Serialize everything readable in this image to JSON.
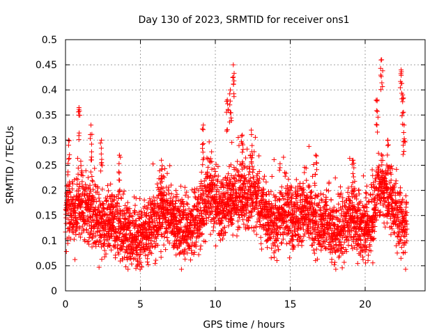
{
  "chart_data": {
    "type": "scatter",
    "title": "Day 130 of 2023, SRMTID for receiver ons1",
    "xlabel": "GPS time / hours",
    "ylabel": "SRMTID / TECUs",
    "xlim": [
      0,
      24
    ],
    "ylim": [
      0,
      0.5
    ],
    "x_ticks": [
      "0",
      "5",
      "10",
      "15",
      "20"
    ],
    "y_ticks": [
      "0",
      "0.05",
      "0.1",
      "0.15",
      "0.2",
      "0.25",
      "0.3",
      "0.35",
      "0.4",
      "0.45",
      "0.5"
    ],
    "grid": true,
    "marker": "+",
    "color": "#ff0000",
    "sampling_interval_hours": 0.01,
    "series_hours": [
      0,
      22.8
    ],
    "baseline_profile": [
      [
        0.0,
        0.15
      ],
      [
        0.5,
        0.16
      ],
      [
        1.0,
        0.17
      ],
      [
        1.5,
        0.16
      ],
      [
        2.0,
        0.15
      ],
      [
        2.5,
        0.13
      ],
      [
        3.0,
        0.14
      ],
      [
        3.5,
        0.13
      ],
      [
        4.0,
        0.12
      ],
      [
        4.5,
        0.11
      ],
      [
        5.0,
        0.11
      ],
      [
        5.5,
        0.12
      ],
      [
        6.0,
        0.14
      ],
      [
        6.5,
        0.16
      ],
      [
        7.0,
        0.15
      ],
      [
        7.5,
        0.13
      ],
      [
        8.0,
        0.12
      ],
      [
        8.5,
        0.13
      ],
      [
        9.0,
        0.15
      ],
      [
        9.5,
        0.19
      ],
      [
        10.0,
        0.18
      ],
      [
        10.5,
        0.16
      ],
      [
        11.0,
        0.17
      ],
      [
        11.5,
        0.19
      ],
      [
        12.0,
        0.18
      ],
      [
        12.5,
        0.2
      ],
      [
        13.0,
        0.17
      ],
      [
        13.5,
        0.14
      ],
      [
        14.0,
        0.13
      ],
      [
        14.5,
        0.16
      ],
      [
        15.0,
        0.15
      ],
      [
        15.5,
        0.15
      ],
      [
        16.0,
        0.16
      ],
      [
        16.5,
        0.14
      ],
      [
        17.0,
        0.13
      ],
      [
        17.5,
        0.13
      ],
      [
        18.0,
        0.11
      ],
      [
        18.5,
        0.12
      ],
      [
        19.0,
        0.15
      ],
      [
        19.5,
        0.14
      ],
      [
        20.0,
        0.12
      ],
      [
        20.5,
        0.14
      ],
      [
        21.0,
        0.21
      ],
      [
        21.5,
        0.19
      ],
      [
        22.0,
        0.17
      ],
      [
        22.5,
        0.13
      ],
      [
        22.8,
        0.12
      ]
    ],
    "peaks": [
      {
        "x": 0.9,
        "y": 0.365
      },
      {
        "x": 0.2,
        "y": 0.3
      },
      {
        "x": 2.4,
        "y": 0.3
      },
      {
        "x": 1.7,
        "y": 0.33
      },
      {
        "x": 3.6,
        "y": 0.27
      },
      {
        "x": 6.4,
        "y": 0.26
      },
      {
        "x": 9.2,
        "y": 0.33
      },
      {
        "x": 11.2,
        "y": 0.45
      },
      {
        "x": 11.0,
        "y": 0.4
      },
      {
        "x": 10.8,
        "y": 0.38
      },
      {
        "x": 12.4,
        "y": 0.32
      },
      {
        "x": 11.8,
        "y": 0.31
      },
      {
        "x": 16.7,
        "y": 0.27
      },
      {
        "x": 19.2,
        "y": 0.26
      },
      {
        "x": 21.1,
        "y": 0.46
      },
      {
        "x": 20.8,
        "y": 0.38
      },
      {
        "x": 22.4,
        "y": 0.44
      },
      {
        "x": 22.5,
        "y": 0.39
      },
      {
        "x": 21.5,
        "y": 0.3
      },
      {
        "x": 22.6,
        "y": 0.33
      }
    ]
  }
}
